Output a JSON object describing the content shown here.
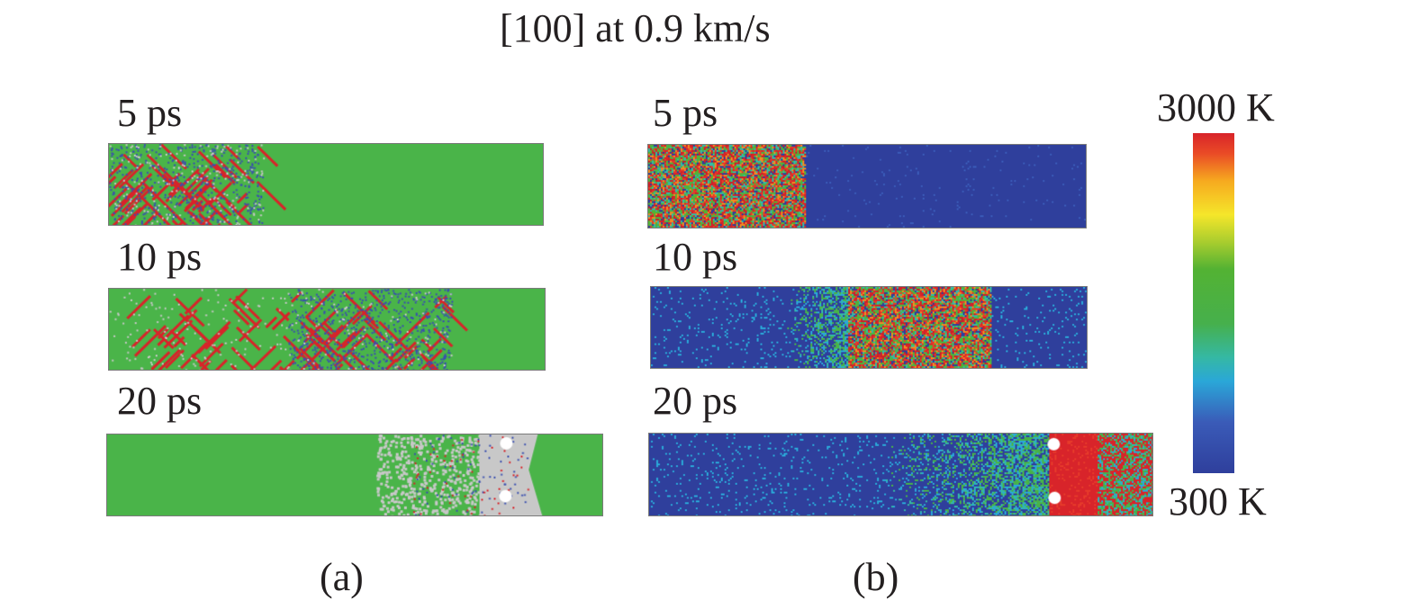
{
  "title": "[100] at 0.9 km/s",
  "panel_a": {
    "caption": "(a)",
    "frames": [
      {
        "time_label": "5 ps"
      },
      {
        "time_label": "10 ps"
      },
      {
        "time_label": "20 ps"
      }
    ]
  },
  "panel_b": {
    "caption": "(b)",
    "frames": [
      {
        "time_label": "5 ps"
      },
      {
        "time_label": "10 ps"
      },
      {
        "time_label": "20 ps"
      }
    ]
  },
  "colorbar": {
    "max_label": "3000 K",
    "min_label": "300 K"
  },
  "colors": {
    "structure_green": "#4ab449",
    "defect_red": "#d8242a",
    "defect_blue": "#3a4fb0",
    "disordered_gray": "#c8c8c8",
    "temp_low_blue": "#2f3f9c",
    "temp_high_red": "#d8242a"
  }
}
